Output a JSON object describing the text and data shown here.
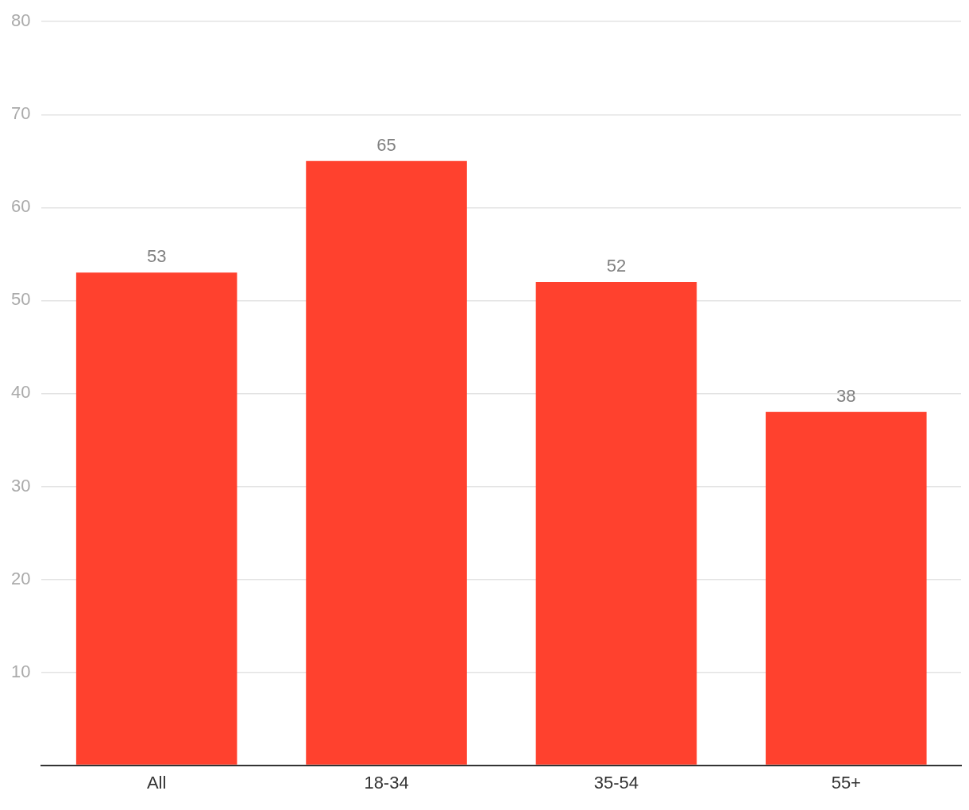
{
  "chart_data": {
    "type": "bar",
    "categories": [
      "All",
      "18-34",
      "35-54",
      "55+"
    ],
    "values": [
      53,
      65,
      52,
      38
    ],
    "color": "#ff412e",
    "ylim": [
      0,
      80
    ],
    "yticks": [
      {
        "value": 0,
        "label": null
      },
      10,
      20,
      30,
      40,
      50,
      60,
      70,
      80
    ],
    "grid": "y",
    "legend": false,
    "data_labels": true
  }
}
